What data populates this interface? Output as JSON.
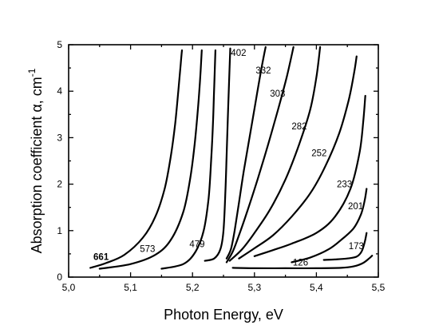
{
  "chart_data": {
    "type": "line",
    "title": "",
    "xlabel": "Photon Energy, eV",
    "ylabel_prefix": "Absorption coefficient α, cm",
    "ylabel_exp": "-1",
    "xlim": [
      5.0,
      5.5
    ],
    "ylim": [
      0,
      5
    ],
    "xticks": [
      "5,0",
      "5,1",
      "5,2",
      "5,3",
      "5,4",
      "5,5"
    ],
    "yticks": [
      "0",
      "1",
      "2",
      "3",
      "4",
      "5"
    ],
    "grid": false,
    "legend": "none",
    "series": [
      {
        "name": "661",
        "label_at": [
          5.04,
          0.44
        ],
        "points": [
          [
            5.035,
            0.2
          ],
          [
            5.06,
            0.3
          ],
          [
            5.09,
            0.48
          ],
          [
            5.12,
            0.85
          ],
          [
            5.14,
            1.3
          ],
          [
            5.155,
            1.9
          ],
          [
            5.165,
            2.6
          ],
          [
            5.172,
            3.3
          ],
          [
            5.177,
            4.0
          ],
          [
            5.181,
            4.6
          ],
          [
            5.183,
            4.88
          ]
        ]
      },
      {
        "name": "573",
        "label_at": [
          5.115,
          0.61
        ],
        "points": [
          [
            5.05,
            0.18
          ],
          [
            5.1,
            0.28
          ],
          [
            5.14,
            0.48
          ],
          [
            5.165,
            0.8
          ],
          [
            5.185,
            1.4
          ],
          [
            5.196,
            2.1
          ],
          [
            5.203,
            2.8
          ],
          [
            5.208,
            3.5
          ],
          [
            5.212,
            4.2
          ],
          [
            5.215,
            4.88
          ]
        ]
      },
      {
        "name": "479",
        "label_at": [
          5.195,
          0.71
        ],
        "points": [
          [
            5.15,
            0.18
          ],
          [
            5.185,
            0.28
          ],
          [
            5.205,
            0.55
          ],
          [
            5.218,
            1.0
          ],
          [
            5.226,
            1.7
          ],
          [
            5.23,
            2.5
          ],
          [
            5.233,
            3.3
          ],
          [
            5.235,
            4.1
          ],
          [
            5.237,
            4.88
          ]
        ]
      },
      {
        "name": "402",
        "label_at": [
          5.262,
          4.83
        ],
        "points": [
          [
            5.22,
            0.35
          ],
          [
            5.235,
            0.4
          ],
          [
            5.245,
            0.6
          ],
          [
            5.25,
            1.0
          ],
          [
            5.253,
            1.8
          ],
          [
            5.255,
            2.6
          ],
          [
            5.257,
            3.4
          ],
          [
            5.259,
            4.2
          ],
          [
            5.261,
            4.92
          ]
        ]
      },
      {
        "name": "332",
        "label_at": [
          5.302,
          4.45
        ],
        "points": [
          [
            5.255,
            0.4
          ],
          [
            5.262,
            0.6
          ],
          [
            5.268,
            1.0
          ],
          [
            5.275,
            1.6
          ],
          [
            5.283,
            2.3
          ],
          [
            5.292,
            3.0
          ],
          [
            5.301,
            3.7
          ],
          [
            5.31,
            4.4
          ],
          [
            5.318,
            4.95
          ]
        ]
      },
      {
        "name": "303",
        "label_at": [
          5.325,
          3.95
        ],
        "points": [
          [
            5.255,
            0.32
          ],
          [
            5.265,
            0.55
          ],
          [
            5.275,
            0.9
          ],
          [
            5.288,
            1.4
          ],
          [
            5.305,
            2.1
          ],
          [
            5.322,
            2.85
          ],
          [
            5.338,
            3.6
          ],
          [
            5.352,
            4.3
          ],
          [
            5.363,
            4.95
          ]
        ]
      },
      {
        "name": "282",
        "label_at": [
          5.36,
          3.25
        ],
        "points": [
          [
            5.26,
            0.35
          ],
          [
            5.28,
            0.6
          ],
          [
            5.3,
            0.95
          ],
          [
            5.325,
            1.45
          ],
          [
            5.35,
            2.1
          ],
          [
            5.372,
            2.85
          ],
          [
            5.39,
            3.6
          ],
          [
            5.4,
            4.3
          ],
          [
            5.406,
            4.95
          ]
        ]
      },
      {
        "name": "252",
        "label_at": [
          5.392,
          2.67
        ],
        "points": [
          [
            5.275,
            0.4
          ],
          [
            5.3,
            0.62
          ],
          [
            5.33,
            0.9
          ],
          [
            5.36,
            1.3
          ],
          [
            5.39,
            1.8
          ],
          [
            5.415,
            2.4
          ],
          [
            5.437,
            3.1
          ],
          [
            5.452,
            3.8
          ],
          [
            5.461,
            4.4
          ],
          [
            5.465,
            4.75
          ]
        ]
      },
      {
        "name": "233",
        "label_at": [
          5.433,
          2.0
        ],
        "points": [
          [
            5.3,
            0.45
          ],
          [
            5.33,
            0.58
          ],
          [
            5.36,
            0.72
          ],
          [
            5.4,
            0.95
          ],
          [
            5.43,
            1.3
          ],
          [
            5.455,
            1.9
          ],
          [
            5.47,
            2.7
          ],
          [
            5.476,
            3.4
          ],
          [
            5.479,
            3.9
          ]
        ]
      },
      {
        "name": "201",
        "label_at": [
          5.451,
          1.53
        ],
        "points": [
          [
            5.36,
            0.32
          ],
          [
            5.39,
            0.42
          ],
          [
            5.42,
            0.6
          ],
          [
            5.44,
            0.8
          ],
          [
            5.46,
            1.05
          ],
          [
            5.472,
            1.35
          ],
          [
            5.478,
            1.65
          ],
          [
            5.481,
            1.9
          ]
        ]
      },
      {
        "name": "173",
        "label_at": [
          5.452,
          0.67
        ],
        "points": [
          [
            5.412,
            0.37
          ],
          [
            5.43,
            0.38
          ],
          [
            5.45,
            0.4
          ],
          [
            5.465,
            0.44
          ],
          [
            5.473,
            0.55
          ],
          [
            5.478,
            0.75
          ],
          [
            5.481,
            0.95
          ]
        ]
      },
      {
        "name": "126",
        "label_at": [
          5.362,
          0.32
        ],
        "points": [
          [
            5.265,
            0.2
          ],
          [
            5.3,
            0.19
          ],
          [
            5.35,
            0.19
          ],
          [
            5.4,
            0.19
          ],
          [
            5.44,
            0.2
          ],
          [
            5.46,
            0.23
          ],
          [
            5.475,
            0.3
          ],
          [
            5.485,
            0.4
          ],
          [
            5.49,
            0.46
          ]
        ]
      }
    ]
  }
}
